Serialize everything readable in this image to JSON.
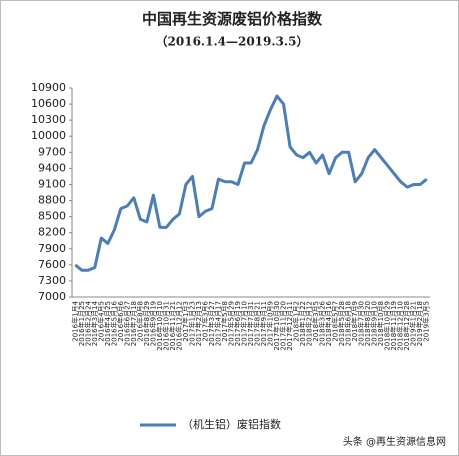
{
  "chart_data": {
    "type": "line",
    "title": "中国再生资源废铝价格指数",
    "subtitle": "（2016.1.4—2019.3.5）",
    "watermark": "头条 @再生资源信息网",
    "categories": [
      "2016年1月4",
      "2016年1月25",
      "2016年2月24",
      "2016年3月14",
      "2016年4月5",
      "2016年4月25",
      "2016年5月16",
      "2016年6月6",
      "2016年6月27",
      "2016年7月18",
      "2016年8月8",
      "2016年8月29",
      "2016年9月19",
      "2016年10月10",
      "2016年10月31",
      "2016年11月21",
      "2016年12月12",
      "2017年1月3",
      "2017年1月23",
      "2017年2月13",
      "2017年3月6",
      "2017年3月27",
      "2017年4月17",
      "2017年5月8",
      "2017年5月29",
      "2017年6月19",
      "2017年7月10",
      "2017年7月31",
      "2017年8月21",
      "2017年9月11",
      "2017年10月9",
      "2017年10月30",
      "2017年11月20",
      "2017年12月11",
      "2018年1月2",
      "2018年1月22",
      "2018年2月12",
      "2018年3月5",
      "2018年3月26",
      "2018年4月16",
      "2018年5月7",
      "2018年5月28",
      "2018年6月18",
      "2018年7月9",
      "2018年7月30",
      "2018年8月20",
      "2018年9月10",
      "2018年10月8",
      "2018年10月29",
      "2018年11月19",
      "2018年12月10",
      "2018年12月28",
      "2019年1月21",
      "2019年2月18",
      "2019年3月5"
    ],
    "series": [
      {
        "name": "（机生铝）废铝指数",
        "color": "#4a7ebb",
        "values": [
          7600,
          7500,
          7500,
          7550,
          8100,
          8000,
          8250,
          8650,
          8700,
          8850,
          8450,
          8400,
          8900,
          8300,
          8300,
          8450,
          8550,
          9100,
          9250,
          8500,
          8600,
          8650,
          9200,
          9150,
          9150,
          9100,
          9500,
          9500,
          9750,
          10200,
          10500,
          10750,
          10600,
          9800,
          9650,
          9600,
          9700,
          9500,
          9650,
          9300,
          9600,
          9700,
          9700,
          9150,
          9300,
          9600,
          9750,
          9600,
          9450,
          9300,
          9150,
          9050,
          9100,
          9100,
          9200
        ]
      }
    ],
    "ylim": [
      7000,
      10900
    ],
    "yticks": [
      7000,
      7300,
      7600,
      7900,
      8200,
      8500,
      8800,
      9100,
      9400,
      9700,
      10000,
      10300,
      10600,
      10900
    ],
    "grid": false
  }
}
